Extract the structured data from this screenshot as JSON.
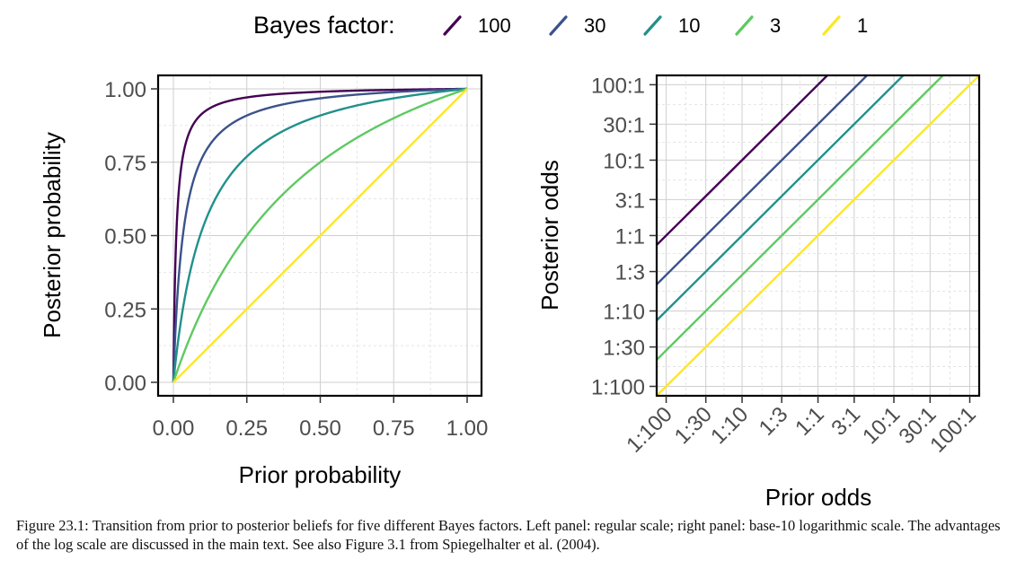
{
  "legend": {
    "title": "Bayes factor:",
    "entries": [
      {
        "label": "100",
        "color": "#440154"
      },
      {
        "label": "30",
        "color": "#3b528b"
      },
      {
        "label": "10",
        "color": "#21908c"
      },
      {
        "label": "3",
        "color": "#5ec962"
      },
      {
        "label": "1",
        "color": "#fde725"
      }
    ]
  },
  "chart_data": [
    {
      "type": "line",
      "xlabel": "Prior probability",
      "ylabel": "Posterior probability",
      "xlim": [
        0,
        1
      ],
      "ylim": [
        0,
        1
      ],
      "x_ticks": [
        "0.00",
        "0.25",
        "0.50",
        "0.75",
        "1.00"
      ],
      "y_ticks": [
        "0.00",
        "0.25",
        "0.50",
        "0.75",
        "1.00"
      ],
      "grid": true,
      "curve": "posterior = BF*p / (BF*p + 1 - p)",
      "series": [
        {
          "name": "100",
          "bayes_factor": 100,
          "x": [
            0,
            0.01,
            0.05,
            0.1,
            0.25,
            0.5,
            0.75,
            1
          ],
          "values": [
            0,
            0.502,
            0.84,
            0.917,
            0.971,
            0.99,
            0.997,
            1
          ]
        },
        {
          "name": "30",
          "bayes_factor": 30,
          "x": [
            0,
            0.01,
            0.05,
            0.1,
            0.25,
            0.5,
            0.75,
            1
          ],
          "values": [
            0,
            0.233,
            0.612,
            0.769,
            0.909,
            0.968,
            0.989,
            1
          ]
        },
        {
          "name": "10",
          "bayes_factor": 10,
          "x": [
            0,
            0.01,
            0.05,
            0.1,
            0.25,
            0.5,
            0.75,
            1
          ],
          "values": [
            0,
            0.092,
            0.345,
            0.526,
            0.769,
            0.909,
            0.968,
            1
          ]
        },
        {
          "name": "3",
          "bayes_factor": 3,
          "x": [
            0,
            0.01,
            0.05,
            0.1,
            0.25,
            0.5,
            0.75,
            1
          ],
          "values": [
            0,
            0.029,
            0.136,
            0.25,
            0.5,
            0.75,
            0.9,
            1
          ]
        },
        {
          "name": "1",
          "bayes_factor": 1,
          "x": [
            0,
            0.01,
            0.05,
            0.1,
            0.25,
            0.5,
            0.75,
            1
          ],
          "values": [
            0,
            0.01,
            0.05,
            0.1,
            0.25,
            0.5,
            0.75,
            1
          ]
        }
      ]
    },
    {
      "type": "line",
      "xlabel": "Prior odds",
      "ylabel": "Posterior odds",
      "scale": "log10",
      "xlim": [
        0.0075,
        133
      ],
      "ylim": [
        0.0075,
        133
      ],
      "x_ticks": [
        "1:100",
        "1:30",
        "1:10",
        "1:3",
        "1:1",
        "3:1",
        "10:1",
        "30:1",
        "100:1"
      ],
      "y_ticks": [
        "1:100",
        "1:30",
        "1:10",
        "1:3",
        "1:1",
        "3:1",
        "10:1",
        "30:1",
        "100:1"
      ],
      "tick_values": [
        0.01,
        0.0333,
        0.1,
        0.333,
        1,
        3,
        10,
        30,
        100
      ],
      "grid": true,
      "curve": "posterior_odds = BF * prior_odds",
      "series": [
        {
          "name": "100",
          "bayes_factor": 100
        },
        {
          "name": "30",
          "bayes_factor": 30
        },
        {
          "name": "10",
          "bayes_factor": 10
        },
        {
          "name": "3",
          "bayes_factor": 3
        },
        {
          "name": "1",
          "bayes_factor": 1
        }
      ]
    }
  ],
  "caption": {
    "label": "Figure 23.1:",
    "text": "Transition from prior to posterior beliefs for five different Bayes factors. Left panel: regular scale; right panel: base-10 logarithmic scale. The advantages of the log scale are discussed in the main text. See also Figure 3.1 from Spiegelhalter et al. (2004)."
  }
}
